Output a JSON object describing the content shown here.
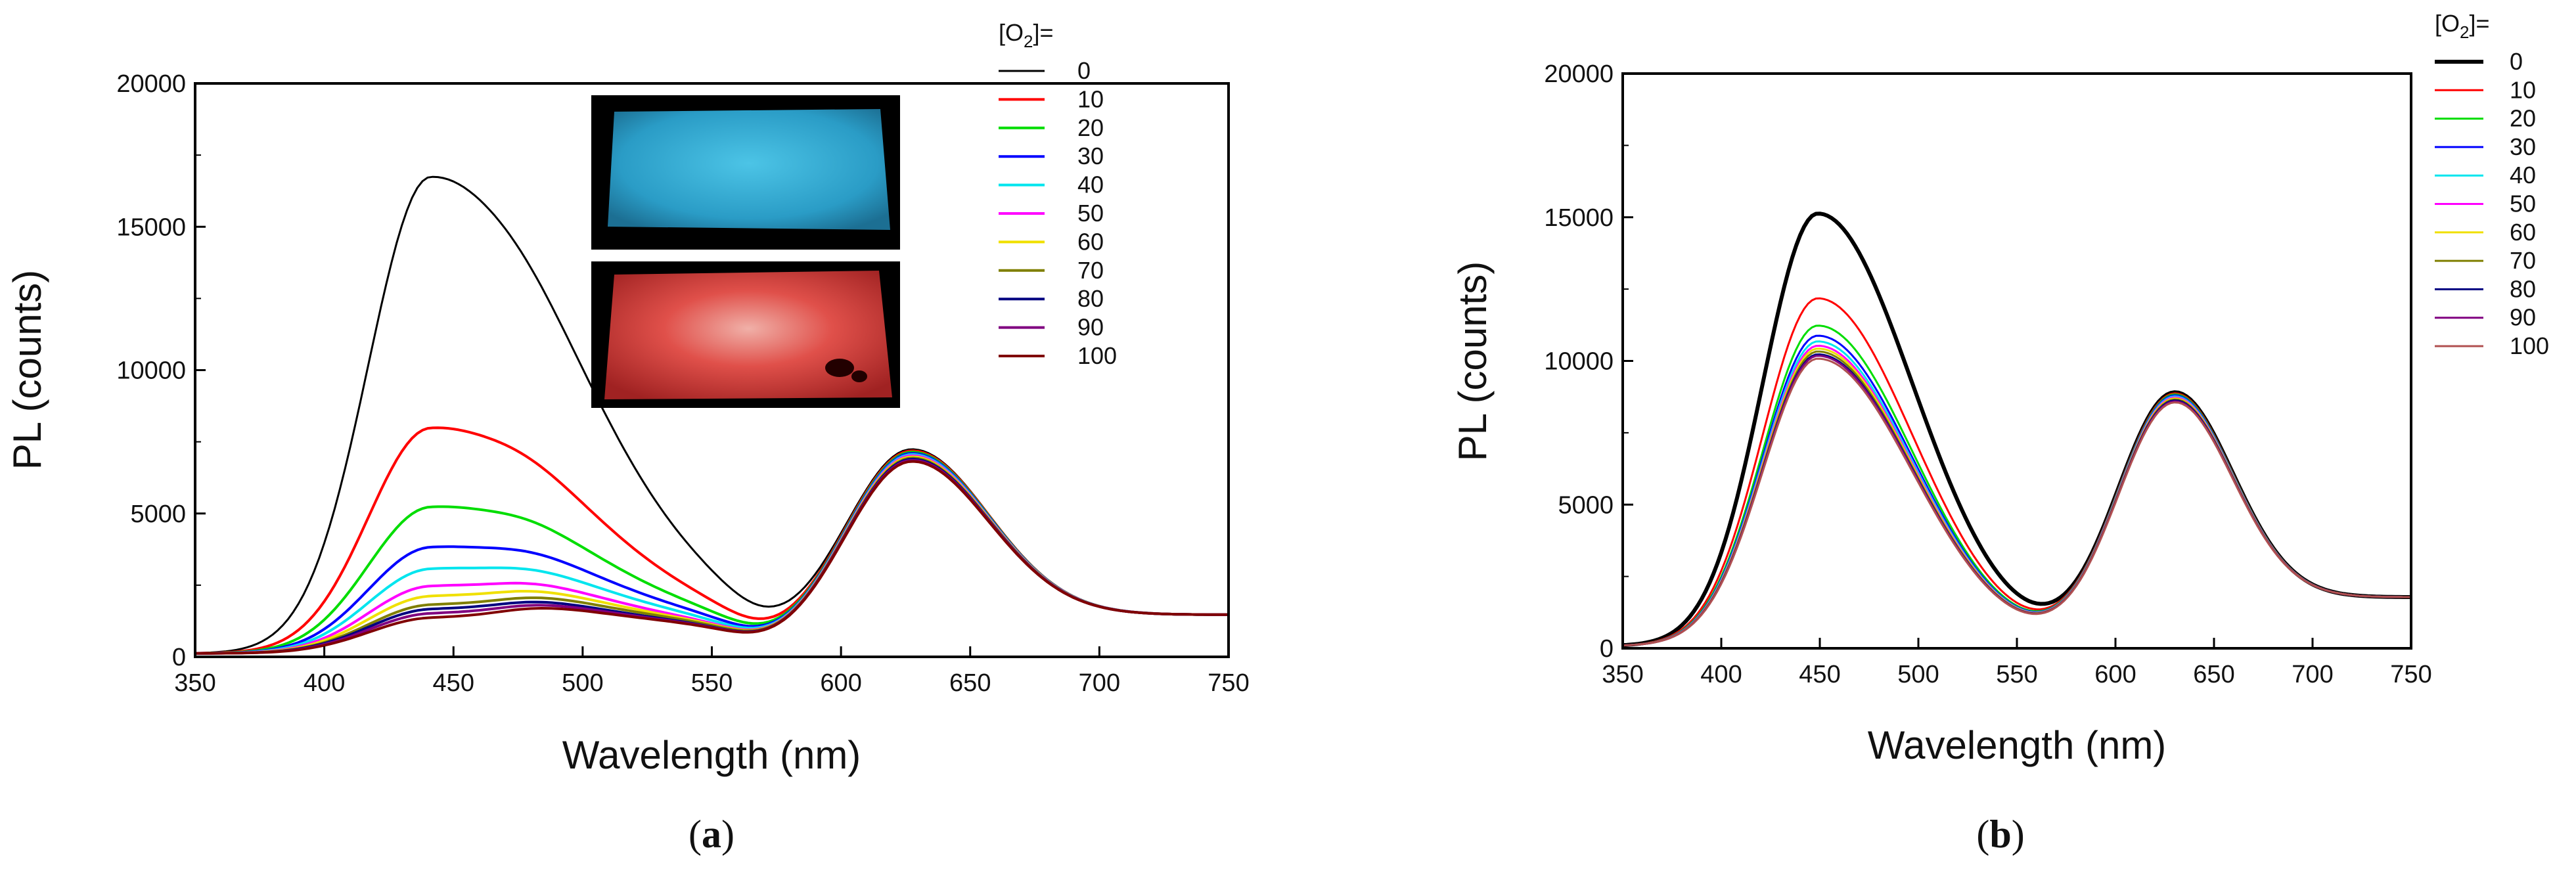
{
  "legend_title_prefix": "[O",
  "legend_title_sub": "2",
  "legend_title_suffix": "]=",
  "chart_data": [
    {
      "type": "line",
      "panel_label": "a",
      "xlabel": "Wavelength (nm)",
      "ylabel": "PL (counts)",
      "xlim": [
        350,
        750
      ],
      "ylim": [
        0,
        20000
      ],
      "xticks": [
        350,
        400,
        450,
        500,
        550,
        600,
        650,
        700,
        750
      ],
      "yticks": [
        0,
        5000,
        10000,
        15000,
        20000
      ],
      "legend_position": "right, outside plot",
      "inset": "two photographs: sensor film glowing blue (top) and red (bottom)",
      "series": [
        {
          "name": "0",
          "color": "#000000",
          "blue_peak": 16750,
          "blue_tail": 1300
        },
        {
          "name": "10",
          "color": "#ff0000",
          "blue_peak": 8000,
          "blue_tail": 1200
        },
        {
          "name": "20",
          "color": "#00dd00",
          "blue_peak": 5250,
          "blue_tail": 1100
        },
        {
          "name": "30",
          "color": "#0000ff",
          "blue_peak": 3850,
          "blue_tail": 1050
        },
        {
          "name": "40",
          "color": "#00e5ee",
          "blue_peak": 3100,
          "blue_tail": 1000
        },
        {
          "name": "50",
          "color": "#ff00ff",
          "blue_peak": 2500,
          "blue_tail": 950
        },
        {
          "name": "60",
          "color": "#f0e000",
          "blue_peak": 2150,
          "blue_tail": 950
        },
        {
          "name": "70",
          "color": "#7f7f00",
          "blue_peak": 1850,
          "blue_tail": 950
        },
        {
          "name": "80",
          "color": "#000080",
          "blue_peak": 1700,
          "blue_tail": 900
        },
        {
          "name": "90",
          "color": "#800080",
          "blue_peak": 1550,
          "blue_tail": 900
        },
        {
          "name": "100",
          "color": "#800000",
          "blue_peak": 1400,
          "blue_tail": 900
        }
      ],
      "blue_peak_nm": 441,
      "red_peak_nm": 627,
      "red_peak_counts": 5800,
      "baseline_750nm": 1350
    },
    {
      "type": "line",
      "panel_label": "b",
      "xlabel": "Wavelength (nm)",
      "ylabel": "PL (counts)",
      "xlim": [
        350,
        750
      ],
      "ylim": [
        0,
        20000
      ],
      "xticks": [
        350,
        400,
        450,
        500,
        550,
        600,
        650,
        700,
        750
      ],
      "yticks": [
        0,
        5000,
        10000,
        15000,
        20000
      ],
      "legend_position": "right, outside plot",
      "series": [
        {
          "name": "0",
          "color": "#000000",
          "blue_peak": 15350
        },
        {
          "name": "10",
          "color": "#ff0000",
          "blue_peak": 12400
        },
        {
          "name": "20",
          "color": "#00dd00",
          "blue_peak": 11450
        },
        {
          "name": "30",
          "color": "#0000ff",
          "blue_peak": 11100
        },
        {
          "name": "40",
          "color": "#00e5ee",
          "blue_peak": 10900
        },
        {
          "name": "50",
          "color": "#ff00ff",
          "blue_peak": 10750
        },
        {
          "name": "60",
          "color": "#f0e000",
          "blue_peak": 10650
        },
        {
          "name": "70",
          "color": "#7f7f00",
          "blue_peak": 10550
        },
        {
          "name": "80",
          "color": "#000080",
          "blue_peak": 10450
        },
        {
          "name": "90",
          "color": "#800080",
          "blue_peak": 10400
        },
        {
          "name": "100",
          "color": "#b05050",
          "blue_peak": 10300
        }
      ],
      "blue_peak_nm": 449,
      "red_peak_nm": 629,
      "red_peak_counts": 7300,
      "baseline_750nm": 1700
    }
  ]
}
